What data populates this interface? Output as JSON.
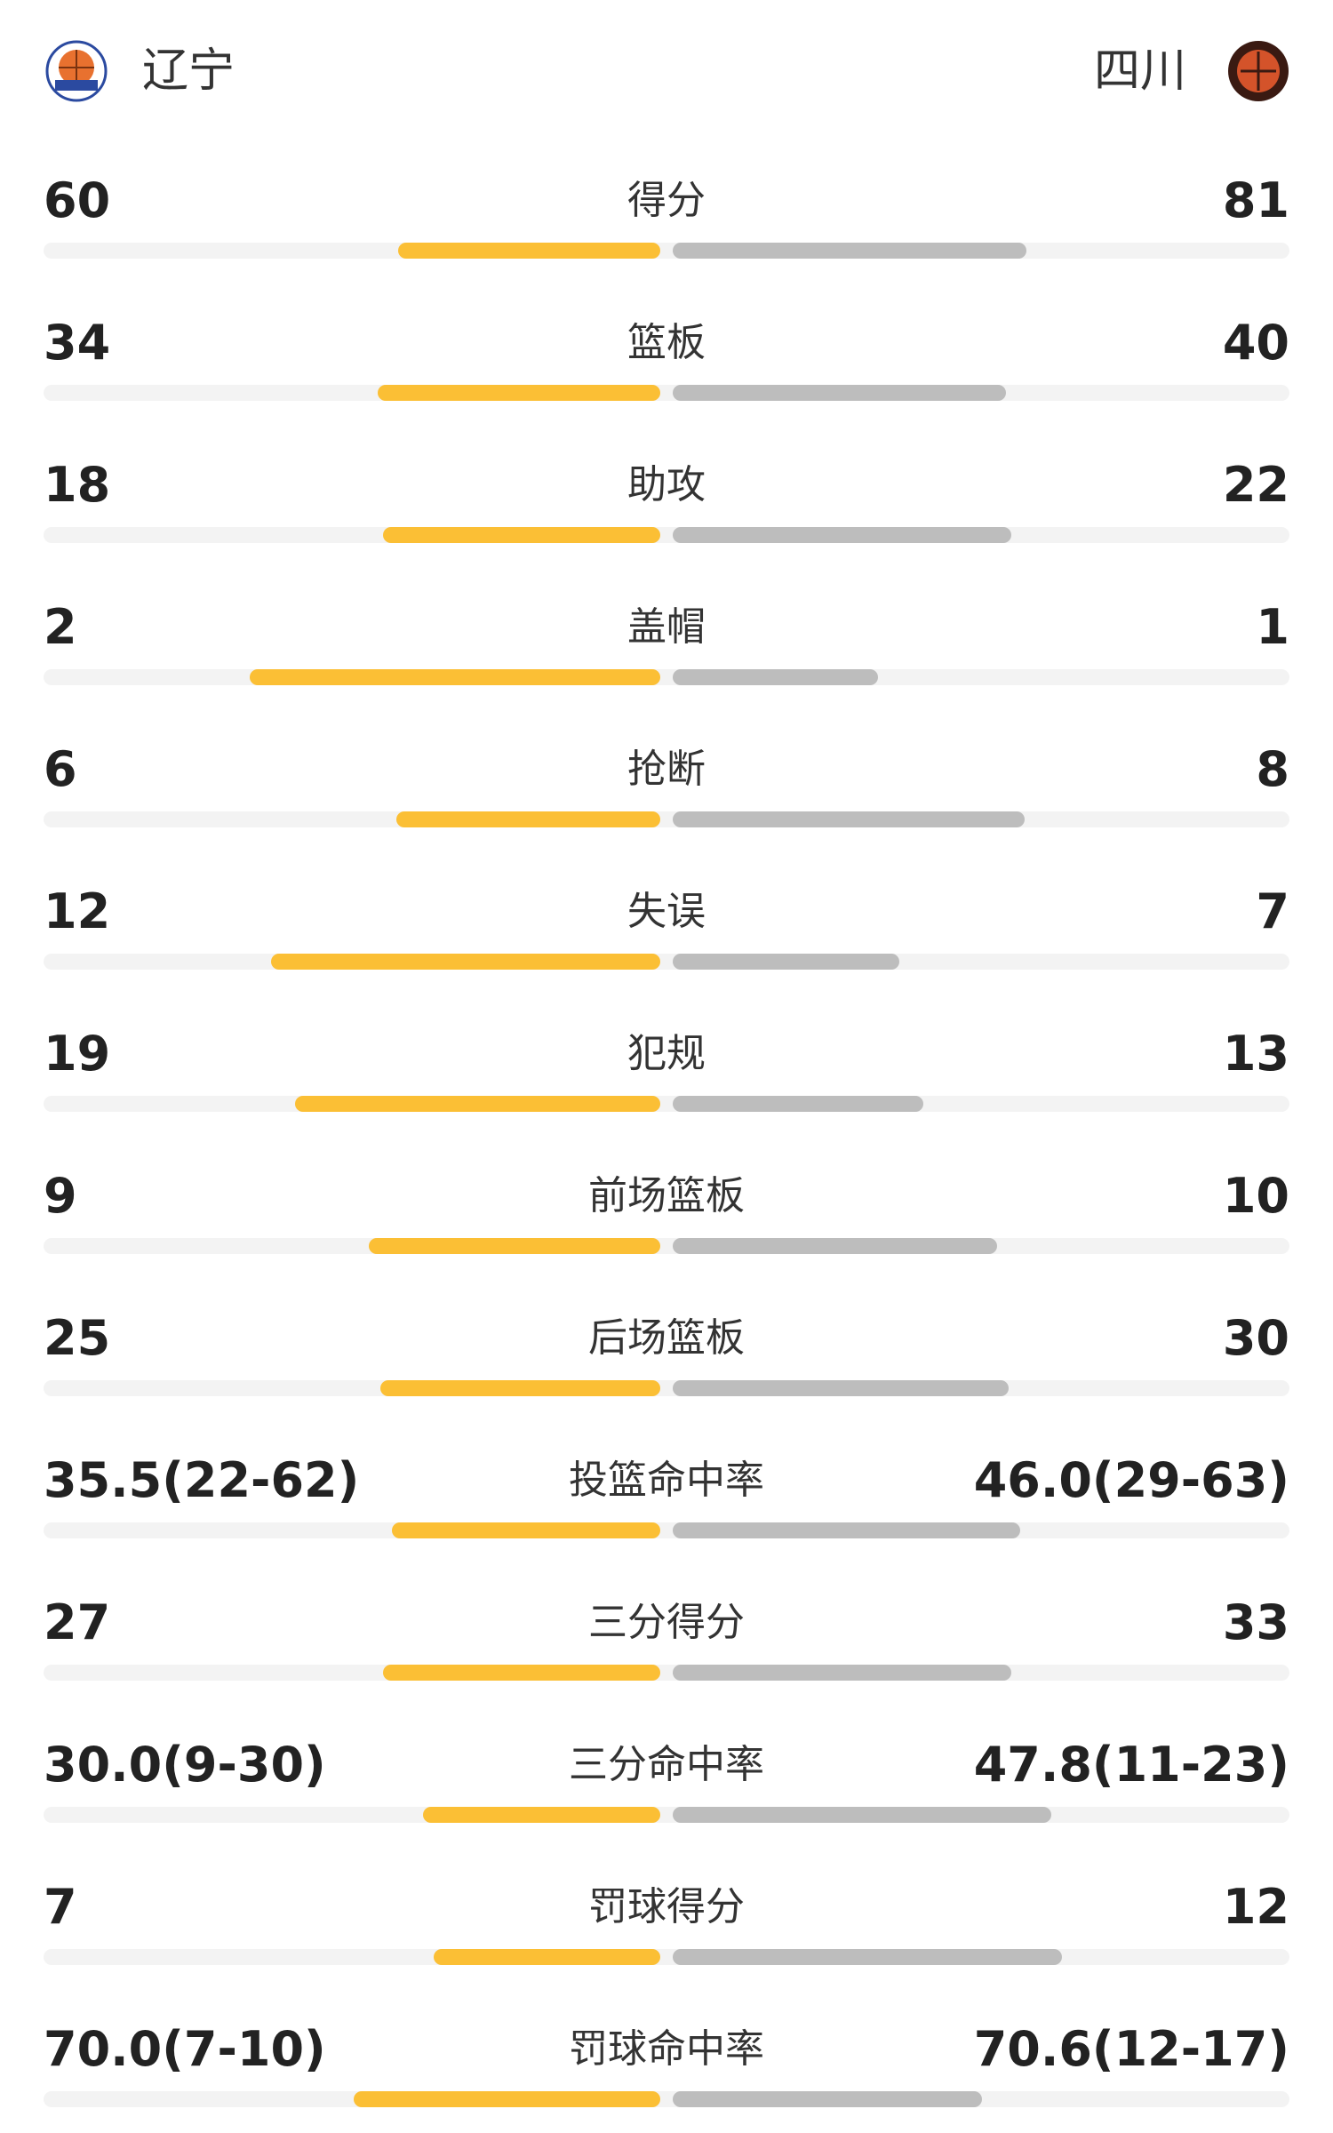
{
  "header": {
    "left_team": "辽宁",
    "right_team": "四川"
  },
  "rows": [
    {
      "label": "得分",
      "left": 60,
      "right": 81
    },
    {
      "label": "篮板",
      "left": 34,
      "right": 40
    },
    {
      "label": "助攻",
      "left": 18,
      "right": 22
    },
    {
      "label": "盖帽",
      "left": 2,
      "right": 1
    },
    {
      "label": "抢断",
      "left": 6,
      "right": 8
    },
    {
      "label": "失误",
      "left": 12,
      "right": 7
    },
    {
      "label": "犯规",
      "left": 19,
      "right": 13
    },
    {
      "label": "前场篮板",
      "left": 9,
      "right": 10
    },
    {
      "label": "后场篮板",
      "left": 25,
      "right": 30
    },
    {
      "label": "投篮命中率",
      "left": {
        "value": 35.5,
        "label": "35.5(22-62)"
      },
      "right": {
        "value": 46.0,
        "label": "46.0(29-63)"
      }
    },
    {
      "label": "三分得分",
      "left": 27,
      "right": 33
    },
    {
      "label": "三分命中率",
      "left": {
        "value": 30.0,
        "label": "30.0(9-30)"
      },
      "right": {
        "value": 47.8,
        "label": "47.8(11-23)"
      }
    },
    {
      "label": "罚球得分",
      "left": 7,
      "right": 12
    },
    {
      "label": "罚球命中率",
      "left": {
        "value": 70.0,
        "label": "70.0(7-10)"
      },
      "right": {
        "value": 70.6,
        "label": "70.6(12-17)"
      }
    }
  ]
}
